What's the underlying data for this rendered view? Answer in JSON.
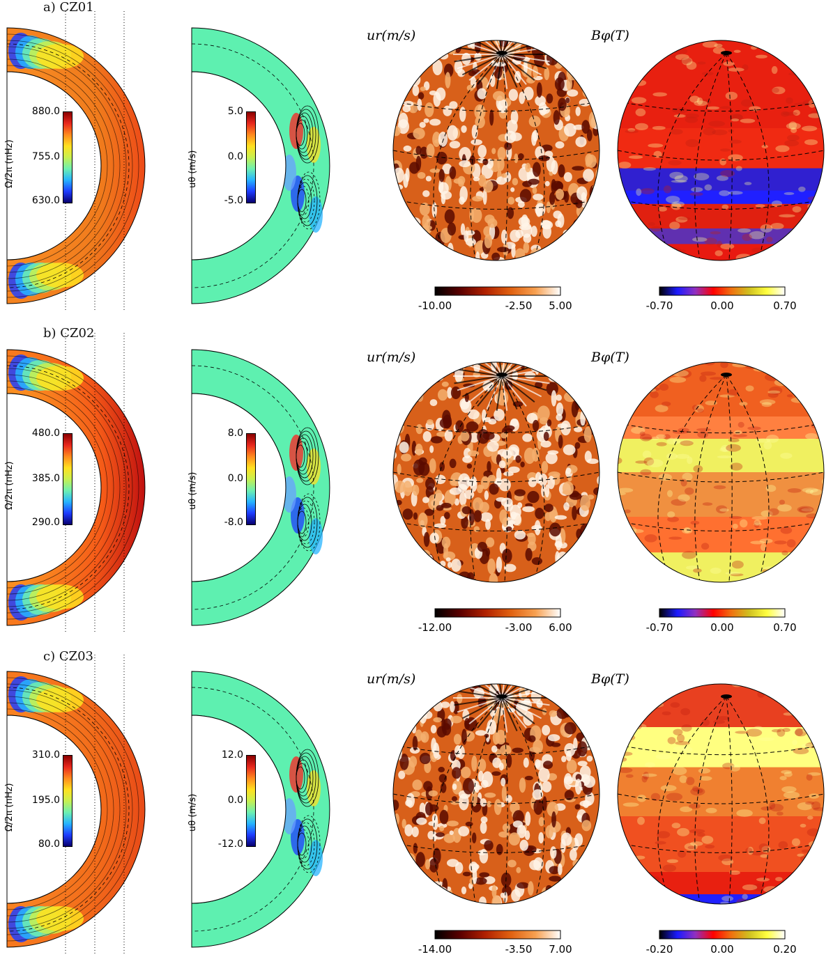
{
  "rows": [
    {
      "label": "a)  CZ01",
      "omega": {
        "title": "Ω/2π (nHz)",
        "ticks": [
          "880.0",
          "755.0",
          "630.0"
        ]
      },
      "utheta": {
        "title": "uθ (m/s)",
        "ticks": [
          "5.0",
          "0.0",
          "-5.0"
        ]
      },
      "ur": {
        "title": "ur(m/s)",
        "ticks": [
          "-10.00",
          "-2.50",
          "5.00"
        ]
      },
      "bphi": {
        "title": "Bφ(T)",
        "ticks": [
          "-0.70",
          "0.00",
          "0.70"
        ]
      }
    },
    {
      "label": "b)  CZ02",
      "omega": {
        "title": "Ω/2π (nHz)",
        "ticks": [
          "480.0",
          "385.0",
          "290.0"
        ]
      },
      "utheta": {
        "title": "uθ (m/s)",
        "ticks": [
          "8.0",
          "0.0",
          "-8.0"
        ]
      },
      "ur": {
        "title": "ur(m/s)",
        "ticks": [
          "-12.00",
          "-3.00",
          "6.00"
        ]
      },
      "bphi": {
        "title": "Bφ(T)",
        "ticks": [
          "-0.70",
          "0.00",
          "0.70"
        ]
      }
    },
    {
      "label": "c)  CZ03",
      "omega": {
        "title": "Ω/2π (nHz)",
        "ticks": [
          "310.0",
          "195.0",
          "80.0"
        ]
      },
      "utheta": {
        "title": "uθ (m/s)",
        "ticks": [
          "12.0",
          "0.0",
          "-12.0"
        ]
      },
      "ur": {
        "title": "ur(m/s)",
        "ticks": [
          "-14.00",
          "-3.50",
          "7.00"
        ]
      },
      "bphi": {
        "title": "Bφ(T)",
        "ticks": [
          "-0.20",
          "0.00",
          "0.20"
        ]
      }
    }
  ],
  "colors": {
    "rainbow": [
      "#08006e",
      "#1e3cff",
      "#27b4ff",
      "#6ef0b0",
      "#c8f050",
      "#ffe020",
      "#ff8a1e",
      "#e8281e",
      "#8a0000"
    ],
    "heat": [
      "#000000",
      "#5a0000",
      "#b02000",
      "#e06010",
      "#f7a050",
      "#ffffff"
    ],
    "bphi": [
      "#000000",
      "#1a1aff",
      "#9030c0",
      "#ff0000",
      "#f07010",
      "#d0c020",
      "#ffff40",
      "#ffffff"
    ],
    "utheta_bg": "#5ef0b0"
  }
}
